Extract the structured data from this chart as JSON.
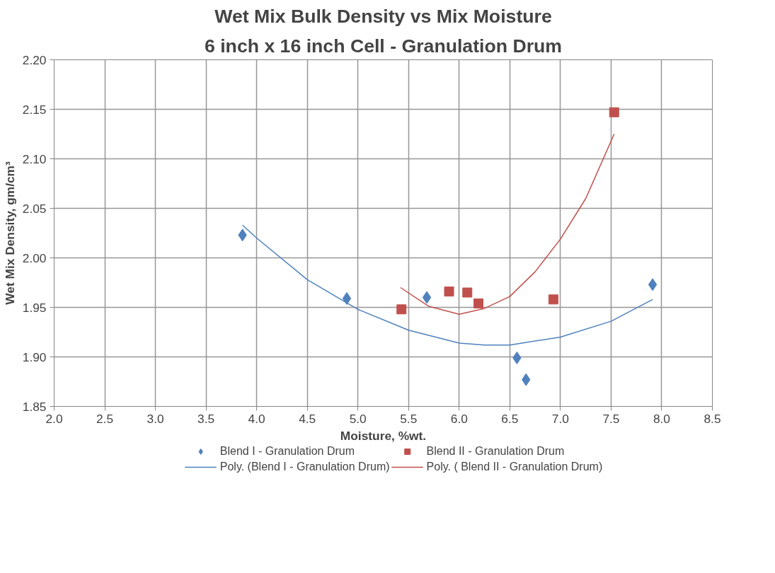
{
  "chart_data": {
    "type": "scatter",
    "title": "Wet Mix Bulk Density vs Mix Moisture",
    "subtitle": "6 inch x 16 inch Cell - Granulation Drum",
    "xlabel": "Moisture, %wt.",
    "ylabel": "Wet Mix Density, gm/cm³",
    "xlim": [
      2.0,
      8.5
    ],
    "xticks": [
      {
        "value": 2.0,
        "label": "2.0"
      },
      {
        "value": 2.5,
        "label": "2.5"
      },
      {
        "value": 3.0,
        "label": "3.0"
      },
      {
        "value": 3.5,
        "label": "3.5"
      },
      {
        "value": 4.0,
        "label": "4.0"
      },
      {
        "value": 4.5,
        "label": "4.5"
      },
      {
        "value": 5.0,
        "label": "5.0"
      },
      {
        "value": 5.5,
        "label": "5.5"
      },
      {
        "value": 6.0,
        "label": "6.0"
      },
      {
        "value": 6.5,
        "label": "6.5"
      },
      {
        "value": 7.0,
        "label": "7.0"
      },
      {
        "value": 7.5,
        "label": "7.5"
      },
      {
        "value": 8.0,
        "label": "8.0"
      },
      {
        "value": 8.5,
        "label": "8.5"
      }
    ],
    "ylim": [
      1.85,
      2.2
    ],
    "yticks": [
      {
        "value": 1.85,
        "label": "1.85"
      },
      {
        "value": 1.9,
        "label": "1.90"
      },
      {
        "value": 1.95,
        "label": "1.95"
      },
      {
        "value": 2.0,
        "label": "2.00"
      },
      {
        "value": 2.05,
        "label": "2.05"
      },
      {
        "value": 2.1,
        "label": "2.10"
      },
      {
        "value": 2.15,
        "label": "2.15"
      },
      {
        "value": 2.2,
        "label": "2.20"
      }
    ],
    "grid": true,
    "legend": "bottom",
    "series": [
      {
        "name": "Blend I - Granulation Drum",
        "marker": "diamond",
        "color": "#4f81bd",
        "x": [
          3.86,
          4.89,
          5.68,
          6.57,
          6.66,
          7.91
        ],
        "values": [
          2.023,
          1.959,
          1.96,
          1.899,
          1.877,
          1.973
        ]
      },
      {
        "name": "Blend II - Granulation Drum",
        "marker": "square",
        "color": "#c0504d",
        "x": [
          5.43,
          5.9,
          6.08,
          6.19,
          6.93,
          7.53
        ],
        "values": [
          1.948,
          1.966,
          1.965,
          1.954,
          1.958,
          2.147
        ]
      },
      {
        "name": "Poly. (Blend I - Granulation Drum)",
        "type": "line",
        "color": "#4f81bd",
        "x": [
          3.86,
          4.0,
          4.5,
          5.0,
          5.5,
          6.0,
          6.25,
          6.5,
          7.0,
          7.5,
          7.91
        ],
        "values": [
          2.033,
          2.02,
          1.978,
          1.948,
          1.927,
          1.914,
          1.912,
          1.912,
          1.92,
          1.936,
          1.958
        ]
      },
      {
        "name": "Poly. ( Blend II - Granulation Drum)",
        "type": "line",
        "color": "#c0504d",
        "x": [
          5.42,
          5.7,
          6.0,
          6.25,
          6.5,
          6.75,
          7.0,
          7.25,
          7.5,
          7.53
        ],
        "values": [
          1.97,
          1.951,
          1.943,
          1.949,
          1.961,
          1.986,
          2.019,
          2.06,
          2.118,
          2.125
        ]
      }
    ]
  }
}
